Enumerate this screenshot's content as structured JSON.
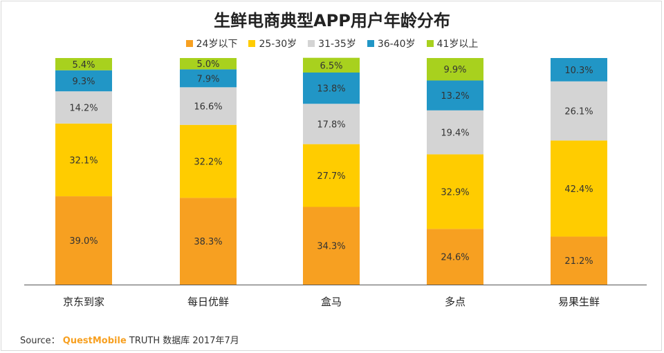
{
  "chart_data": {
    "type": "bar",
    "stacked": true,
    "title": "生鲜电商典型APP用户年龄分布",
    "categories": [
      "京东到家",
      "每日优鲜",
      "盒马",
      "多点",
      "易果生鲜"
    ],
    "series": [
      {
        "name": "24岁以下",
        "color": "#f7a021",
        "values": [
          39.0,
          38.3,
          34.3,
          24.6,
          21.2
        ]
      },
      {
        "name": "25-30岁",
        "color": "#ffcc00",
        "values": [
          32.1,
          32.2,
          27.7,
          32.9,
          42.4
        ]
      },
      {
        "name": "31-35岁",
        "color": "#d4d4d4",
        "values": [
          14.2,
          16.6,
          17.8,
          19.4,
          26.1
        ]
      },
      {
        "name": "36-40岁",
        "color": "#2196c6",
        "values": [
          9.3,
          7.9,
          13.8,
          13.2,
          10.3
        ]
      },
      {
        "name": "41岁以上",
        "color": "#a8d11e",
        "values": [
          5.4,
          5.0,
          6.5,
          9.9,
          0
        ]
      }
    ],
    "value_suffix": "%",
    "legend_position": "top-center",
    "grid": false,
    "ylim": [
      0,
      100
    ]
  },
  "source": {
    "label": "Source：",
    "brand": "QuestMobile",
    "text": " TRUTH 数据库 2017年7月"
  }
}
